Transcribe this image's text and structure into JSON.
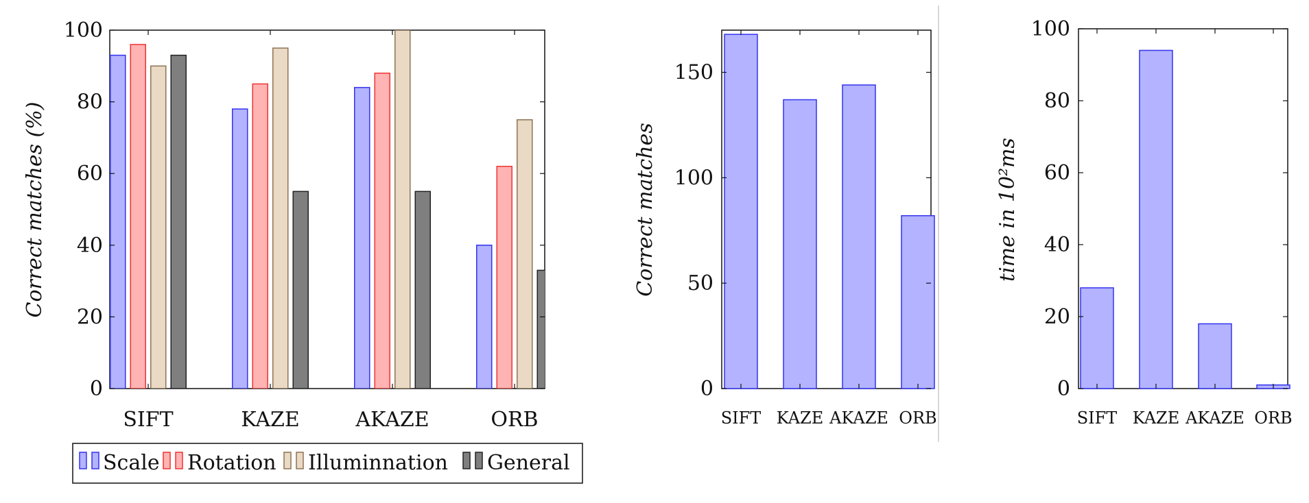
{
  "colors": {
    "scale_fill": "#b3b3ff",
    "scale_stroke": "#3333ee",
    "rotation_fill": "#ffb3b3",
    "rotation_stroke": "#ee3333",
    "illum_fill": "#ead9c4",
    "illum_stroke": "#8c7455",
    "general_fill": "#7f7f7f",
    "general_stroke": "#222222",
    "single_fill": "#b3b3ff",
    "single_stroke": "#3333ee"
  },
  "chart_data": [
    {
      "id": "match-percentage",
      "type": "bar",
      "title": "",
      "xlabel": "",
      "ylabel": "Correct matches (%)",
      "ylim": [
        0,
        100
      ],
      "yticks": [
        0,
        20,
        40,
        60,
        80,
        100
      ],
      "categories": [
        "SIFT",
        "KAZE",
        "AKAZE",
        "ORB"
      ],
      "series": [
        {
          "name": "Scale",
          "key": "scale",
          "values": [
            93,
            78,
            84,
            40
          ]
        },
        {
          "name": "Rotation",
          "key": "rotation",
          "values": [
            96,
            85,
            88,
            62
          ]
        },
        {
          "name": "Illuminnation",
          "key": "illum",
          "values": [
            90,
            95,
            100,
            75
          ]
        },
        {
          "name": "General",
          "key": "general",
          "values": [
            93,
            55,
            55,
            33
          ]
        }
      ],
      "legend_position": "bottom"
    },
    {
      "id": "correct-matches",
      "type": "bar",
      "title": "",
      "xlabel": "",
      "ylabel": "Correct matches",
      "ylim": [
        0,
        170
      ],
      "yticks": [
        0,
        50,
        100,
        150
      ],
      "categories": [
        "SIFT",
        "KAZE",
        "AKAZE",
        "ORB"
      ],
      "values": [
        168,
        137,
        144,
        82
      ]
    },
    {
      "id": "time",
      "type": "bar",
      "title": "",
      "xlabel": "",
      "ylabel": "time in 10²ms",
      "ylim": [
        0,
        100
      ],
      "yticks": [
        0,
        20,
        40,
        60,
        80,
        100
      ],
      "categories": [
        "SIFT",
        "KAZE",
        "AKAZE",
        "ORB"
      ],
      "values": [
        28,
        94,
        18,
        1
      ]
    }
  ]
}
